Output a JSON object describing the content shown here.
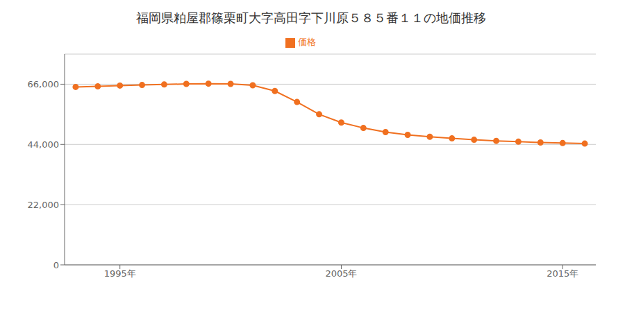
{
  "chart_data": {
    "type": "line",
    "title": "福岡県粕屋郡篠栗町大字高田字下川原５８５番１１の地価推移",
    "x": [
      1993,
      1994,
      1995,
      1996,
      1997,
      1998,
      1999,
      2000,
      2001,
      2002,
      2003,
      2004,
      2005,
      2006,
      2007,
      2008,
      2009,
      2010,
      2011,
      2012,
      2013,
      2014,
      2015,
      2016
    ],
    "series": [
      {
        "name": "価格",
        "color": "#f07020",
        "values": [
          65000,
          65200,
          65500,
          65700,
          65900,
          66100,
          66200,
          66100,
          65600,
          63500,
          59500,
          55000,
          52000,
          50000,
          48500,
          47500,
          46800,
          46200,
          45700,
          45300,
          45000,
          44700,
          44500,
          44300
        ]
      }
    ],
    "xlim": [
      1992.5,
      2016.5
    ],
    "xticks": [
      {
        "value": 1995,
        "label": "1995年"
      },
      {
        "value": 2005,
        "label": "2005年"
      },
      {
        "value": 2015,
        "label": "2015年"
      }
    ],
    "ylim": [
      0,
      77000
    ],
    "yticks": [
      0,
      {
        "value": 22000,
        "label": "22,000"
      },
      {
        "value": 44000,
        "label": "44,000"
      },
      {
        "value": 66000,
        "label": "66,000"
      }
    ],
    "grid": "y",
    "legend": "top",
    "marker": "circle"
  }
}
